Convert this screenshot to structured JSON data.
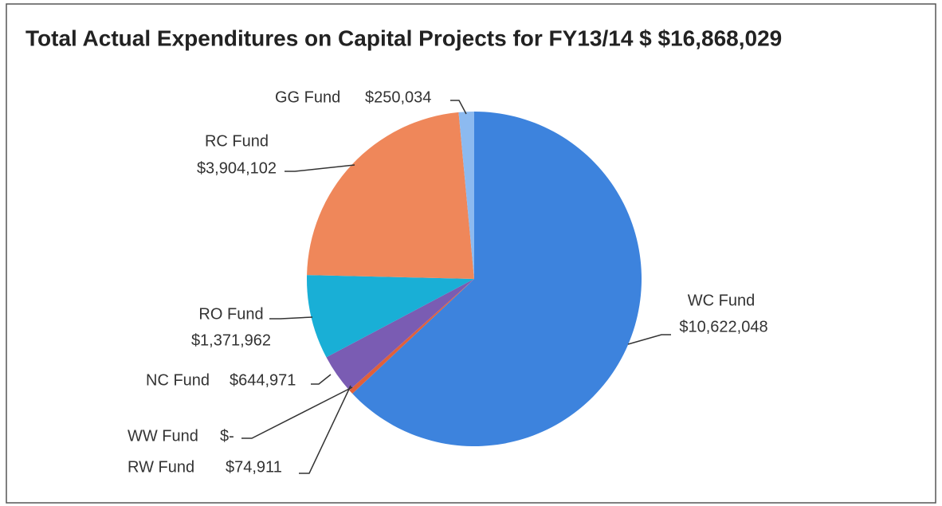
{
  "chart_data": {
    "type": "pie",
    "title": "Total Actual Expenditures on Capital Projects for FY13/14 $ $16,868,029",
    "categories": [
      "WC Fund",
      "RW Fund",
      "WW Fund",
      "NC Fund",
      "RO Fund",
      "RC Fund",
      "GG Fund"
    ],
    "values": [
      10622048,
      74911,
      0,
      644971,
      1371962,
      3904102,
      250034
    ],
    "value_labels": [
      "$10,622,048",
      "$74,911",
      "$-",
      "$644,971",
      "$1,371,962",
      "$3,904,102",
      "$250,034"
    ],
    "colors": [
      "#3d83dd",
      "#e0603a",
      "#999999",
      "#7a5cb3",
      "#19afd6",
      "#ef875a",
      "#8cbaf0"
    ]
  }
}
